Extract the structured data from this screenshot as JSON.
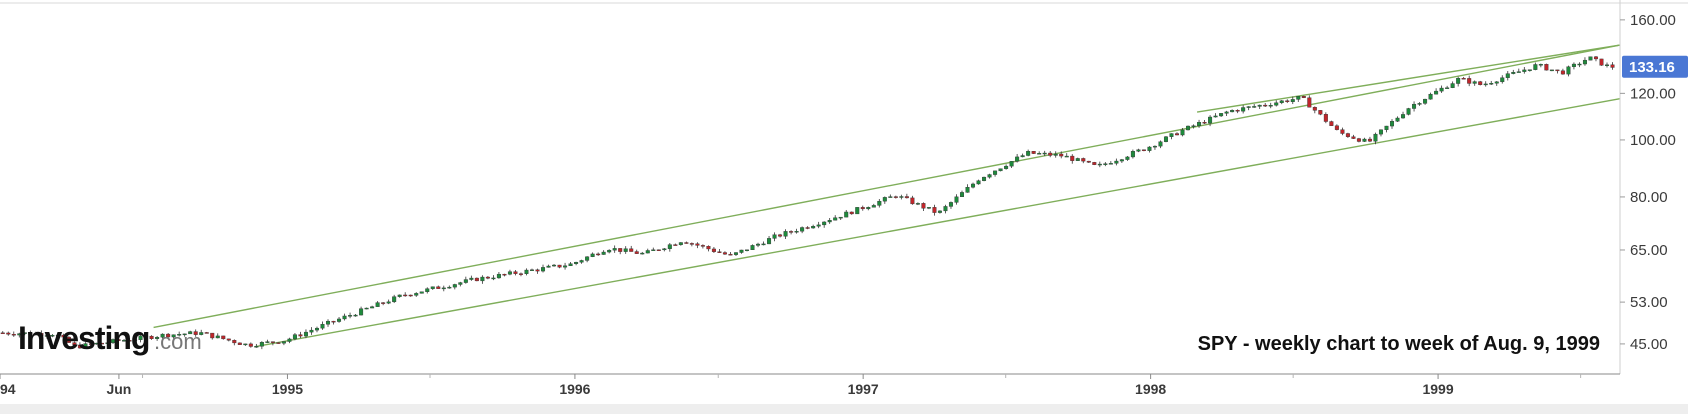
{
  "chart_data": {
    "type": "candlestick",
    "symbol_annotation": "SPY - weekly chart to week of Aug. 9, 1999",
    "logo": {
      "main": "Investing",
      "suffix": ".com"
    },
    "last_price_label": "133.16",
    "last_price": 133.16,
    "y_scale": "log",
    "ylim": [
      40,
      165
    ],
    "y_ticks": [
      {
        "value": 160,
        "label": "160.00"
      },
      {
        "value": 120,
        "label": "120.00"
      },
      {
        "value": 100,
        "label": "100.00"
      },
      {
        "value": 80,
        "label": "80.00"
      },
      {
        "value": 65,
        "label": "65.00"
      },
      {
        "value": 53,
        "label": "53.00"
      },
      {
        "value": 45,
        "label": "45.00"
      }
    ],
    "x_ticks": [
      {
        "date": "1994-01-01",
        "label": "94"
      },
      {
        "date": "1994-06-01",
        "label": "Jun"
      },
      {
        "date": "1995-01-01",
        "label": "1995"
      },
      {
        "date": "1996-01-01",
        "label": "1996"
      },
      {
        "date": "1997-01-01",
        "label": "1997"
      },
      {
        "date": "1998-01-01",
        "label": "1998"
      },
      {
        "date": "1999-01-01",
        "label": "1999"
      }
    ],
    "xlim": [
      "1994-01-01",
      "1999-08-20"
    ],
    "up_color": "#1e8a3c",
    "down_color": "#c0262b",
    "trendline_color": "#7fae5a",
    "badge_color": "#4a77d4",
    "price_path": [
      [
        "1994-01-01",
        47.0
      ],
      [
        "1994-03-15",
        46.8
      ],
      [
        "1994-04-10",
        44.5
      ],
      [
        "1994-06-01",
        45.5
      ],
      [
        "1994-08-01",
        46.6
      ],
      [
        "1994-09-15",
        47.0
      ],
      [
        "1994-11-15",
        44.8
      ],
      [
        "1995-01-01",
        45.6
      ],
      [
        "1995-03-01",
        49.0
      ],
      [
        "1995-06-01",
        54.5
      ],
      [
        "1995-09-01",
        58.0
      ],
      [
        "1995-12-31",
        61.5
      ],
      [
        "1996-02-15",
        65.5
      ],
      [
        "1996-04-01",
        64.0
      ],
      [
        "1996-05-20",
        67.5
      ],
      [
        "1996-07-20",
        63.5
      ],
      [
        "1996-09-15",
        68.5
      ],
      [
        "1996-12-15",
        75.0
      ],
      [
        "1997-02-15",
        80.5
      ],
      [
        "1997-04-10",
        75.0
      ],
      [
        "1997-06-01",
        86.0
      ],
      [
        "1997-08-01",
        95.0
      ],
      [
        "1997-09-15",
        94.0
      ],
      [
        "1997-10-28",
        90.0
      ],
      [
        "1997-12-31",
        97.0
      ],
      [
        "1998-02-15",
        104.0
      ],
      [
        "1998-04-15",
        112.0
      ],
      [
        "1998-07-15",
        118.0
      ],
      [
        "1998-08-31",
        103.0
      ],
      [
        "1998-10-08",
        99.0
      ],
      [
        "1998-11-30",
        114.0
      ],
      [
        "1999-01-31",
        127.0
      ],
      [
        "1999-03-01",
        124.0
      ],
      [
        "1999-05-10",
        134.0
      ],
      [
        "1999-06-10",
        130.0
      ],
      [
        "1999-07-15",
        138.0
      ],
      [
        "1999-08-09",
        133.16
      ]
    ],
    "trendlines": [
      {
        "from": [
          "1994-07-15",
          48.0
        ],
        "to": [
          "1999-08-20",
          145.0
        ]
      },
      {
        "from": [
          "1994-11-20",
          44.5
        ],
        "to": [
          "1999-08-20",
          117.5
        ]
      },
      {
        "from": [
          "1998-03-01",
          111.5
        ],
        "to": [
          "1999-08-20",
          145.0
        ]
      }
    ]
  }
}
